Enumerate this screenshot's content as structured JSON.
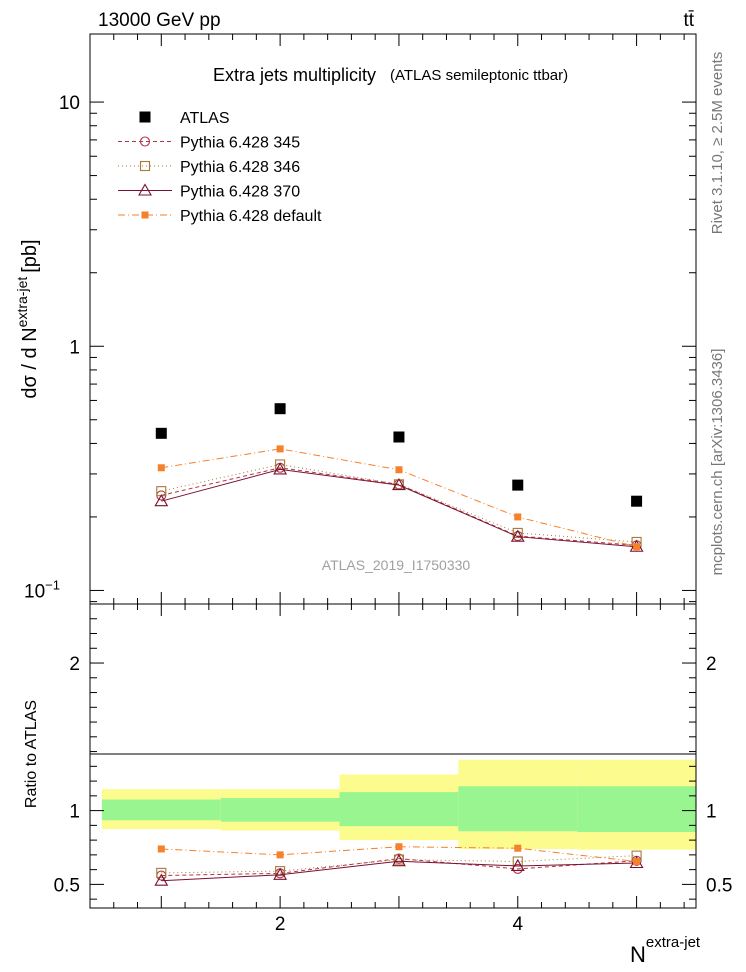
{
  "header": {
    "energy_label": "13000 GeV pp",
    "process_label": "tt̄"
  },
  "side_text": {
    "rivet": "Rivet 3.1.10, ≥ 2.5M events",
    "mcplots": "mcplots.cern.ch [arXiv:1306.3436]"
  },
  "chart_data": [
    {
      "type": "line",
      "scale": "log",
      "title": "Extra jets multiplicity",
      "subtitle": "(ATLAS semileptonic ttbar)",
      "watermark": "ATLAS_2019_I1750330",
      "ylabel_main": "dσ / d N",
      "ylabel_sup": "extra-jet",
      "ylabel_unit": "[pb]",
      "xlim": [
        0.4,
        5.5
      ],
      "ylim": [
        0.088,
        19
      ],
      "yticks": [
        {
          "v": 0.1,
          "base": "10",
          "exp": "−1"
        },
        {
          "v": 1,
          "base": "1",
          "exp": ""
        },
        {
          "v": 10,
          "base": "10",
          "exp": ""
        }
      ],
      "x": [
        1,
        2,
        3,
        4,
        5
      ],
      "series": [
        {
          "name": "ATLAS",
          "color": "#000000",
          "marker": "square-filled",
          "style": "none",
          "values": [
            0.44,
            0.555,
            0.425,
            0.27,
            0.232
          ]
        },
        {
          "name": "Pythia 6.428 345",
          "color": "#b3344a",
          "marker": "circle-open",
          "style": "dashed",
          "values": [
            0.245,
            0.318,
            0.272,
            0.167,
            0.153
          ]
        },
        {
          "name": "Pythia 6.428 346",
          "color": "#a57b36",
          "marker": "square-open",
          "style": "dotted",
          "values": [
            0.255,
            0.328,
            0.272,
            0.172,
            0.158
          ]
        },
        {
          "name": "Pythia 6.428 370",
          "color": "#7a1030",
          "marker": "triangle-open",
          "style": "solid",
          "values": [
            0.232,
            0.313,
            0.27,
            0.166,
            0.151
          ]
        },
        {
          "name": "Pythia 6.428 default",
          "color": "#f5812b",
          "marker": "square-filled-small",
          "style": "dashdot",
          "values": [
            0.318,
            0.38,
            0.312,
            0.2,
            0.151
          ]
        }
      ]
    },
    {
      "type": "line",
      "ylabel": "Ratio to ATLAS",
      "xlabel": "N",
      "xlabel_sup": "extra-jet",
      "xlim": [
        0.4,
        5.5
      ],
      "ylim": [
        0.34,
        2.4
      ],
      "yticks": [
        0.5,
        1,
        2
      ],
      "xticks": [
        2,
        4
      ],
      "bands": [
        {
          "x0": 0.5,
          "x1": 1.5,
          "inner": [
            0.935,
            1.075
          ],
          "outer": [
            0.875,
            1.145
          ]
        },
        {
          "x0": 1.5,
          "x1": 2.5,
          "inner": [
            0.925,
            1.085
          ],
          "outer": [
            0.865,
            1.145
          ]
        },
        {
          "x0": 2.5,
          "x1": 3.5,
          "inner": [
            0.895,
            1.125
          ],
          "outer": [
            0.8,
            1.245
          ]
        },
        {
          "x0": 3.5,
          "x1": 4.5,
          "inner": [
            0.86,
            1.165
          ],
          "outer": [
            0.74,
            1.345
          ]
        },
        {
          "x0": 4.5,
          "x1": 5.5,
          "inner": [
            0.855,
            1.165
          ],
          "outer": [
            0.735,
            1.345
          ]
        }
      ],
      "inner_band_color": "#99f58f",
      "outer_band_color": "#fbfc8d",
      "x": [
        1,
        2,
        3,
        4,
        5
      ],
      "series": [
        {
          "name": "Pythia 6.428 345",
          "values": [
            0.56,
            0.575,
            0.675,
            0.605,
            0.66
          ]
        },
        {
          "name": "Pythia 6.428 346",
          "values": [
            0.578,
            0.59,
            0.668,
            0.655,
            0.695
          ]
        },
        {
          "name": "Pythia 6.428 370",
          "values": [
            0.525,
            0.565,
            0.657,
            0.625,
            0.645
          ]
        },
        {
          "name": "Pythia 6.428 default",
          "values": [
            0.74,
            0.7,
            0.755,
            0.745,
            0.655
          ]
        }
      ]
    }
  ]
}
